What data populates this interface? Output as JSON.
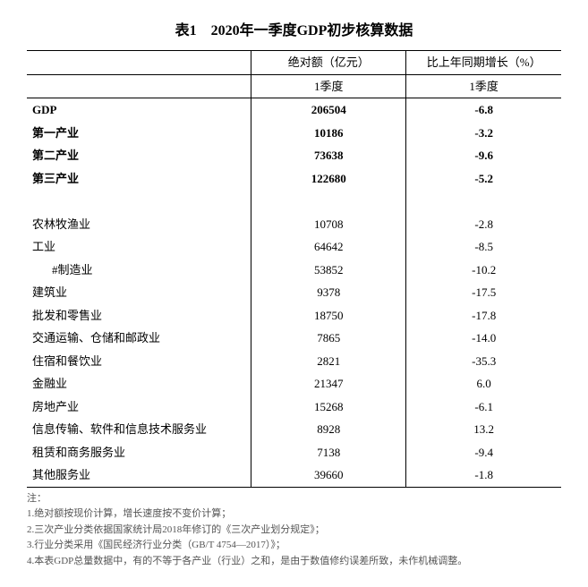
{
  "title": "表1　2020年一季度GDP初步核算数据",
  "headers": {
    "col1_top": "绝对额（亿元）",
    "col2_top": "比上年同期增长（%）",
    "col1_sub": "1季度",
    "col2_sub": "1季度"
  },
  "summary": [
    {
      "label": "GDP",
      "val1": "206504",
      "val2": "-6.8"
    },
    {
      "label": "第一产业",
      "val1": "10186",
      "val2": "-3.2"
    },
    {
      "label": "第二产业",
      "val1": "73638",
      "val2": "-9.6"
    },
    {
      "label": "第三产业",
      "val1": "122680",
      "val2": "-5.2"
    }
  ],
  "detail": [
    {
      "label": "农林牧渔业",
      "val1": "10708",
      "val2": "-2.8",
      "indent": 1
    },
    {
      "label": "工业",
      "val1": "64642",
      "val2": "-8.5",
      "indent": 1
    },
    {
      "label": "#制造业",
      "val1": "53852",
      "val2": "-10.2",
      "indent": 2
    },
    {
      "label": "建筑业",
      "val1": "9378",
      "val2": "-17.5",
      "indent": 1
    },
    {
      "label": "批发和零售业",
      "val1": "18750",
      "val2": "-17.8",
      "indent": 1
    },
    {
      "label": "交通运输、仓储和邮政业",
      "val1": "7865",
      "val2": "-14.0",
      "indent": 1
    },
    {
      "label": "住宿和餐饮业",
      "val1": "2821",
      "val2": "-35.3",
      "indent": 1
    },
    {
      "label": "金融业",
      "val1": "21347",
      "val2": "6.0",
      "indent": 1
    },
    {
      "label": "房地产业",
      "val1": "15268",
      "val2": "-6.1",
      "indent": 1
    },
    {
      "label": "信息传输、软件和信息技术服务业",
      "val1": "8928",
      "val2": "13.2",
      "indent": 1
    },
    {
      "label": "租赁和商务服务业",
      "val1": "7138",
      "val2": "-9.4",
      "indent": 1
    },
    {
      "label": "其他服务业",
      "val1": "39660",
      "val2": "-1.8",
      "indent": 1
    }
  ],
  "notes": {
    "heading": "注：",
    "items": [
      "1.绝对额按现价计算，增长速度按不变价计算；",
      "2.三次产业分类依据国家统计局2018年修订的《三次产业划分规定》；",
      "3.行业分类采用《国民经济行业分类（GB/T 4754—2017）》；",
      "4.本表GDP总量数据中，有的不等于各产业（行业）之和，是由于数值修约误差所致，未作机械调整。"
    ]
  }
}
